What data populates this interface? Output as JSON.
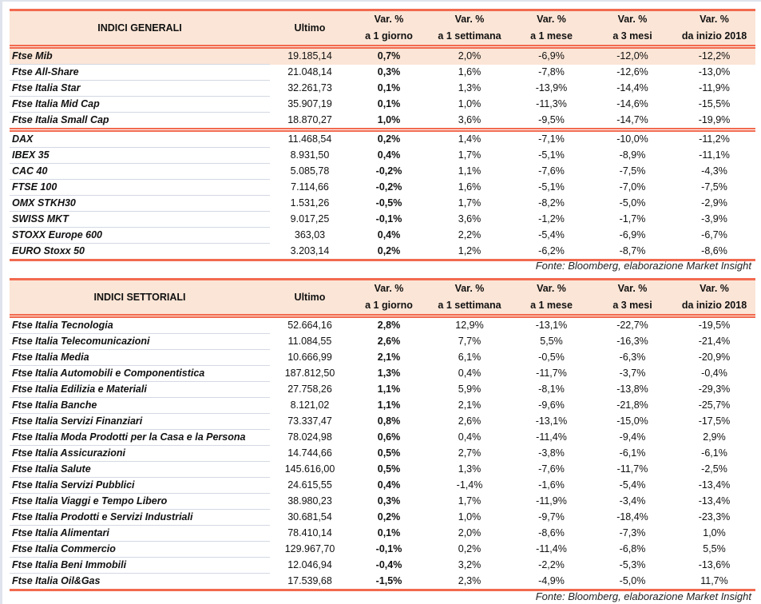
{
  "general": {
    "headers": {
      "name": "INDICI GENERALI",
      "last": "Ultimo",
      "d1": [
        "Var. %",
        "a 1 giorno"
      ],
      "w1": [
        "Var. %",
        "a 1 settimana"
      ],
      "m1": [
        "Var. %",
        "a 1 mese"
      ],
      "m3": [
        "Var. %",
        "a 3 mesi"
      ],
      "ytd": [
        "Var. %",
        "da inizio 2018"
      ]
    },
    "rows": [
      [
        "Ftse Mib",
        "19.185,14",
        "0,7%",
        "2,0%",
        "-6,9%",
        "-12,0%",
        "-12,2%"
      ],
      [
        "Ftse All-Share",
        "21.048,14",
        "0,3%",
        "1,6%",
        "-7,8%",
        "-12,6%",
        "-13,0%"
      ],
      [
        "Ftse Italia Star",
        "32.261,73",
        "0,1%",
        "1,3%",
        "-13,9%",
        "-14,4%",
        "-11,9%"
      ],
      [
        "Ftse Italia Mid Cap",
        "35.907,19",
        "0,1%",
        "1,0%",
        "-11,3%",
        "-14,6%",
        "-15,5%"
      ],
      [
        "Ftse Italia Small Cap",
        "18.870,27",
        "1,0%",
        "3,6%",
        "-9,5%",
        "-14,7%",
        "-19,9%"
      ],
      [
        "DAX",
        "11.468,54",
        "0,2%",
        "1,4%",
        "-7,1%",
        "-10,0%",
        "-11,2%"
      ],
      [
        "IBEX 35",
        "8.931,50",
        "0,4%",
        "1,7%",
        "-5,1%",
        "-8,9%",
        "-11,1%"
      ],
      [
        "CAC 40",
        "5.085,78",
        "-0,2%",
        "1,1%",
        "-7,6%",
        "-7,5%",
        "-4,3%"
      ],
      [
        "FTSE 100",
        "7.114,66",
        "-0,2%",
        "1,6%",
        "-5,1%",
        "-7,0%",
        "-7,5%"
      ],
      [
        "OMX STKH30",
        "1.531,26",
        "-0,5%",
        "1,7%",
        "-8,2%",
        "-5,0%",
        "-2,9%"
      ],
      [
        "SWISS MKT",
        "9.017,25",
        "-0,1%",
        "3,6%",
        "-1,2%",
        "-1,7%",
        "-3,9%"
      ],
      [
        "STOXX Europe 600",
        "363,03",
        "0,4%",
        "2,2%",
        "-5,4%",
        "-6,9%",
        "-6,7%"
      ],
      [
        "EURO Stoxx 50",
        "3.203,14",
        "0,2%",
        "1,2%",
        "-6,2%",
        "-8,7%",
        "-8,6%"
      ]
    ],
    "source": "Fonte: Bloomberg, elaborazione Market Insight"
  },
  "sector": {
    "headers": {
      "name": "INDICI SETTORIALI",
      "last": "Ultimo",
      "d1": [
        "Var. %",
        "a 1 giorno"
      ],
      "w1": [
        "Var. %",
        "a 1 settimana"
      ],
      "m1": [
        "Var. %",
        "a 1 mese"
      ],
      "m3": [
        "Var. %",
        "a 3 mesi"
      ],
      "ytd": [
        "Var. %",
        "da inizio 2018"
      ]
    },
    "rows": [
      [
        "Ftse Italia Tecnologia",
        "52.664,16",
        "2,8%",
        "12,9%",
        "-13,1%",
        "-22,7%",
        "-19,5%"
      ],
      [
        "Ftse Italia Telecomunicazioni",
        "11.084,55",
        "2,6%",
        "7,7%",
        "5,5%",
        "-16,3%",
        "-21,4%"
      ],
      [
        "Ftse Italia Media",
        "10.666,99",
        "2,1%",
        "6,1%",
        "-0,5%",
        "-6,3%",
        "-20,9%"
      ],
      [
        "Ftse Italia Automobili e Componentistica",
        "187.812,50",
        "1,3%",
        "0,4%",
        "-11,7%",
        "-3,7%",
        "-0,4%"
      ],
      [
        "Ftse Italia Edilizia e Materiali",
        "27.758,26",
        "1,1%",
        "5,9%",
        "-8,1%",
        "-13,8%",
        "-29,3%"
      ],
      [
        "Ftse Italia Banche",
        "8.121,02",
        "1,1%",
        "2,1%",
        "-9,6%",
        "-21,8%",
        "-25,7%"
      ],
      [
        "Ftse Italia Servizi Finanziari",
        "73.337,47",
        "0,8%",
        "2,6%",
        "-13,1%",
        "-15,0%",
        "-17,5%"
      ],
      [
        "Ftse Italia Moda Prodotti per la Casa e la Persona",
        "78.024,98",
        "0,6%",
        "0,4%",
        "-11,4%",
        "-9,4%",
        "2,9%"
      ],
      [
        "Ftse Italia Assicurazioni",
        "14.744,66",
        "0,5%",
        "2,7%",
        "-3,8%",
        "-6,1%",
        "-6,1%"
      ],
      [
        "Ftse Italia Salute",
        "145.616,00",
        "0,5%",
        "1,3%",
        "-7,6%",
        "-11,7%",
        "-2,5%"
      ],
      [
        "Ftse Italia Servizi Pubblici",
        "24.615,55",
        "0,4%",
        "-1,4%",
        "-1,6%",
        "-5,4%",
        "-13,4%"
      ],
      [
        "Ftse Italia Viaggi e Tempo Libero",
        "38.980,23",
        "0,3%",
        "1,7%",
        "-11,9%",
        "-3,4%",
        "-13,4%"
      ],
      [
        "Ftse Italia Prodotti e Servizi Industriali",
        "30.681,54",
        "0,2%",
        "1,0%",
        "-9,7%",
        "-18,4%",
        "-23,3%"
      ],
      [
        "Ftse Italia Alimentari",
        "78.410,14",
        "0,1%",
        "2,0%",
        "-8,6%",
        "-7,3%",
        "1,0%"
      ],
      [
        "Ftse Italia Commercio",
        "129.967,70",
        "-0,1%",
        "0,2%",
        "-11,4%",
        "-6,8%",
        "5,5%"
      ],
      [
        "Ftse Italia Beni Immobili",
        "12.046,94",
        "-0,4%",
        "3,2%",
        "-2,2%",
        "-5,3%",
        "-13,6%"
      ],
      [
        "Ftse Italia Oil&Gas",
        "17.539,68",
        "-1,5%",
        "2,3%",
        "-4,9%",
        "-5,0%",
        "11,7%"
      ]
    ],
    "source": "Fonte: Bloomberg, elaborazione Market Insight"
  },
  "colors": {
    "accent": "#f26a4f",
    "header_bg": "#fbe5d6"
  }
}
